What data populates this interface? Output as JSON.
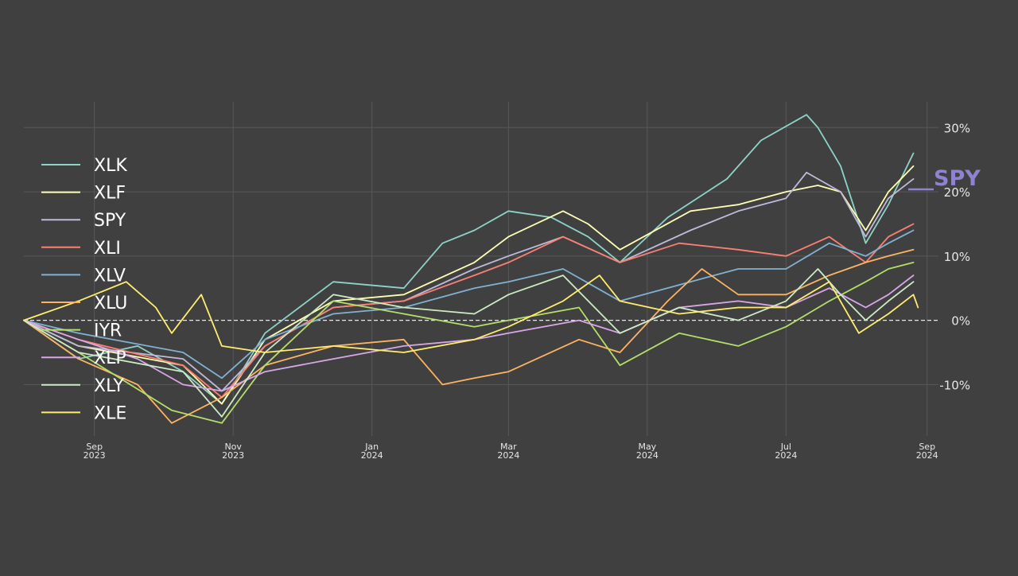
{
  "chart_data": {
    "type": "line",
    "title": "",
    "xlabel": "",
    "ylabel": "",
    "ylim": [
      -18,
      34
    ],
    "x_range": [
      "2023-08-01",
      "2024-09-06"
    ],
    "y_ticks": [
      {
        "value": 30,
        "label": "30%"
      },
      {
        "value": 20,
        "label": "20%"
      },
      {
        "value": 10,
        "label": "10%"
      },
      {
        "value": 0,
        "label": "0%"
      },
      {
        "value": -10,
        "label": "-10%"
      }
    ],
    "x_ticks": [
      {
        "date": "2023-09-01",
        "month": "Sep",
        "year": "2023"
      },
      {
        "date": "2023-11-01",
        "month": "Nov",
        "year": "2023"
      },
      {
        "date": "2024-01-01",
        "month": "Jan",
        "year": "2024"
      },
      {
        "date": "2024-03-01",
        "month": "Mar",
        "year": "2024"
      },
      {
        "date": "2024-05-01",
        "month": "May",
        "year": "2024"
      },
      {
        "date": "2024-07-01",
        "month": "Jul",
        "year": "2024"
      },
      {
        "date": "2024-09-01",
        "month": "Sep",
        "year": "2024"
      }
    ],
    "highlight": {
      "name": "SPY",
      "label": "SPY",
      "color": "#8d83cf"
    },
    "legend_position": "left",
    "grid": true,
    "zero_line": true,
    "series": [
      {
        "name": "XLK",
        "color": "#8dd3c7",
        "points": [
          [
            "2023-08-01",
            0
          ],
          [
            "2023-08-25",
            -6
          ],
          [
            "2023-09-20",
            -4
          ],
          [
            "2023-10-10",
            -8
          ],
          [
            "2023-10-27",
            -13
          ],
          [
            "2023-11-15",
            -2
          ],
          [
            "2023-12-15",
            6
          ],
          [
            "2024-01-15",
            5
          ],
          [
            "2024-02-01",
            12
          ],
          [
            "2024-02-15",
            14
          ],
          [
            "2024-03-01",
            17
          ],
          [
            "2024-03-20",
            16
          ],
          [
            "2024-04-05",
            13
          ],
          [
            "2024-04-19",
            9
          ],
          [
            "2024-05-10",
            16
          ],
          [
            "2024-06-05",
            22
          ],
          [
            "2024-06-20",
            28
          ],
          [
            "2024-07-10",
            32
          ],
          [
            "2024-07-15",
            30
          ],
          [
            "2024-07-25",
            24
          ],
          [
            "2024-08-05",
            12
          ],
          [
            "2024-08-15",
            18
          ],
          [
            "2024-08-26",
            26
          ]
        ]
      },
      {
        "name": "XLF",
        "color": "#ffffb3",
        "points": [
          [
            "2023-08-01",
            0
          ],
          [
            "2023-08-25",
            -4
          ],
          [
            "2023-10-10",
            -7
          ],
          [
            "2023-10-27",
            -13
          ],
          [
            "2023-11-15",
            -3
          ],
          [
            "2023-12-15",
            3
          ],
          [
            "2024-01-15",
            4
          ],
          [
            "2024-02-15",
            9
          ],
          [
            "2024-03-01",
            13
          ],
          [
            "2024-03-25",
            17
          ],
          [
            "2024-04-05",
            15
          ],
          [
            "2024-04-19",
            11
          ],
          [
            "2024-05-20",
            17
          ],
          [
            "2024-06-10",
            18
          ],
          [
            "2024-07-01",
            20
          ],
          [
            "2024-07-15",
            21
          ],
          [
            "2024-07-25",
            20
          ],
          [
            "2024-08-05",
            14
          ],
          [
            "2024-08-15",
            20
          ],
          [
            "2024-08-26",
            24
          ]
        ]
      },
      {
        "name": "SPY",
        "color": "#bebada",
        "points": [
          [
            "2023-08-01",
            0
          ],
          [
            "2023-08-25",
            -4
          ],
          [
            "2023-10-10",
            -6
          ],
          [
            "2023-10-27",
            -11
          ],
          [
            "2023-11-15",
            -4
          ],
          [
            "2023-12-15",
            2
          ],
          [
            "2024-01-15",
            3
          ],
          [
            "2024-02-15",
            8
          ],
          [
            "2024-03-01",
            10
          ],
          [
            "2024-03-25",
            13
          ],
          [
            "2024-04-19",
            9
          ],
          [
            "2024-05-20",
            14
          ],
          [
            "2024-06-10",
            17
          ],
          [
            "2024-07-01",
            19
          ],
          [
            "2024-07-10",
            23
          ],
          [
            "2024-07-25",
            20
          ],
          [
            "2024-08-05",
            13
          ],
          [
            "2024-08-15",
            19
          ],
          [
            "2024-08-26",
            22
          ]
        ]
      },
      {
        "name": "XLI",
        "color": "#fb8072",
        "points": [
          [
            "2023-08-01",
            0
          ],
          [
            "2023-08-25",
            -3
          ],
          [
            "2023-10-10",
            -7
          ],
          [
            "2023-10-27",
            -12
          ],
          [
            "2023-11-15",
            -4
          ],
          [
            "2023-12-15",
            2
          ],
          [
            "2024-01-15",
            3
          ],
          [
            "2024-02-15",
            7
          ],
          [
            "2024-03-01",
            9
          ],
          [
            "2024-03-25",
            13
          ],
          [
            "2024-04-19",
            9
          ],
          [
            "2024-05-15",
            12
          ],
          [
            "2024-06-10",
            11
          ],
          [
            "2024-07-01",
            10
          ],
          [
            "2024-07-20",
            13
          ],
          [
            "2024-08-05",
            9
          ],
          [
            "2024-08-15",
            13
          ],
          [
            "2024-08-26",
            15
          ]
        ]
      },
      {
        "name": "XLV",
        "color": "#80b1d3",
        "points": [
          [
            "2023-08-01",
            0
          ],
          [
            "2023-08-25",
            -2
          ],
          [
            "2023-10-10",
            -5
          ],
          [
            "2023-10-27",
            -9
          ],
          [
            "2023-11-15",
            -3
          ],
          [
            "2023-12-15",
            1
          ],
          [
            "2024-01-15",
            2
          ],
          [
            "2024-02-15",
            5
          ],
          [
            "2024-03-01",
            6
          ],
          [
            "2024-03-25",
            8
          ],
          [
            "2024-04-19",
            3
          ],
          [
            "2024-05-20",
            6
          ],
          [
            "2024-06-10",
            8
          ],
          [
            "2024-07-01",
            8
          ],
          [
            "2024-07-20",
            12
          ],
          [
            "2024-08-05",
            10
          ],
          [
            "2024-08-15",
            12
          ],
          [
            "2024-08-26",
            14
          ]
        ]
      },
      {
        "name": "XLU",
        "color": "#fdb462",
        "points": [
          [
            "2023-08-01",
            0
          ],
          [
            "2023-08-25",
            -6
          ],
          [
            "2023-09-20",
            -10
          ],
          [
            "2023-10-05",
            -16
          ],
          [
            "2023-10-27",
            -12
          ],
          [
            "2023-11-15",
            -7
          ],
          [
            "2023-12-15",
            -4
          ],
          [
            "2024-01-15",
            -3
          ],
          [
            "2024-02-01",
            -10
          ],
          [
            "2024-02-15",
            -9
          ],
          [
            "2024-03-01",
            -8
          ],
          [
            "2024-04-01",
            -3
          ],
          [
            "2024-04-19",
            -5
          ],
          [
            "2024-05-10",
            3
          ],
          [
            "2024-05-25",
            8
          ],
          [
            "2024-06-10",
            4
          ],
          [
            "2024-07-01",
            4
          ],
          [
            "2024-07-20",
            7
          ],
          [
            "2024-08-05",
            9
          ],
          [
            "2024-08-15",
            10
          ],
          [
            "2024-08-26",
            11
          ]
        ]
      },
      {
        "name": "IYR",
        "color": "#b3de69",
        "points": [
          [
            "2023-08-01",
            0
          ],
          [
            "2023-08-25",
            -5
          ],
          [
            "2023-10-05",
            -14
          ],
          [
            "2023-10-27",
            -16
          ],
          [
            "2023-11-15",
            -7
          ],
          [
            "2023-12-15",
            3
          ],
          [
            "2024-01-15",
            1
          ],
          [
            "2024-02-15",
            -1
          ],
          [
            "2024-03-01",
            0
          ],
          [
            "2024-04-01",
            2
          ],
          [
            "2024-04-19",
            -7
          ],
          [
            "2024-05-15",
            -2
          ],
          [
            "2024-06-10",
            -4
          ],
          [
            "2024-07-01",
            -1
          ],
          [
            "2024-07-20",
            3
          ],
          [
            "2024-08-05",
            6
          ],
          [
            "2024-08-15",
            8
          ],
          [
            "2024-08-26",
            9
          ]
        ]
      },
      {
        "name": "XLP",
        "color": "#d9a6e8",
        "points": [
          [
            "2023-08-01",
            0
          ],
          [
            "2023-08-25",
            -3
          ],
          [
            "2023-09-20",
            -6
          ],
          [
            "2023-10-10",
            -10
          ],
          [
            "2023-10-27",
            -11
          ],
          [
            "2023-11-15",
            -8
          ],
          [
            "2023-12-15",
            -6
          ],
          [
            "2024-01-15",
            -4
          ],
          [
            "2024-02-15",
            -3
          ],
          [
            "2024-03-01",
            -2
          ],
          [
            "2024-04-01",
            0
          ],
          [
            "2024-04-19",
            -2
          ],
          [
            "2024-05-15",
            2
          ],
          [
            "2024-06-10",
            3
          ],
          [
            "2024-07-01",
            2
          ],
          [
            "2024-07-20",
            5
          ],
          [
            "2024-08-05",
            2
          ],
          [
            "2024-08-15",
            4
          ],
          [
            "2024-08-26",
            7
          ]
        ]
      },
      {
        "name": "XLY",
        "color": "#ccebc5",
        "points": [
          [
            "2023-08-01",
            0
          ],
          [
            "2023-08-25",
            -5
          ],
          [
            "2023-10-10",
            -8
          ],
          [
            "2023-10-27",
            -15
          ],
          [
            "2023-11-15",
            -5
          ],
          [
            "2023-12-15",
            4
          ],
          [
            "2024-01-15",
            2
          ],
          [
            "2024-02-15",
            1
          ],
          [
            "2024-03-01",
            4
          ],
          [
            "2024-03-25",
            7
          ],
          [
            "2024-04-19",
            -2
          ],
          [
            "2024-05-15",
            2
          ],
          [
            "2024-06-10",
            0
          ],
          [
            "2024-07-01",
            3
          ],
          [
            "2024-07-15",
            8
          ],
          [
            "2024-07-25",
            4
          ],
          [
            "2024-08-05",
            0
          ],
          [
            "2024-08-15",
            3
          ],
          [
            "2024-08-26",
            6
          ]
        ]
      },
      {
        "name": "XLE",
        "color": "#ffed6f",
        "points": [
          [
            "2023-08-01",
            0
          ],
          [
            "2023-08-25",
            3
          ],
          [
            "2023-09-15",
            6
          ],
          [
            "2023-09-28",
            2
          ],
          [
            "2023-10-05",
            -2
          ],
          [
            "2023-10-18",
            4
          ],
          [
            "2023-10-27",
            -4
          ],
          [
            "2023-11-15",
            -5
          ],
          [
            "2023-12-15",
            -4
          ],
          [
            "2024-01-15",
            -5
          ],
          [
            "2024-02-15",
            -3
          ],
          [
            "2024-03-01",
            -1
          ],
          [
            "2024-03-25",
            3
          ],
          [
            "2024-04-10",
            7
          ],
          [
            "2024-04-19",
            3
          ],
          [
            "2024-05-15",
            1
          ],
          [
            "2024-06-10",
            2
          ],
          [
            "2024-07-01",
            2
          ],
          [
            "2024-07-20",
            6
          ],
          [
            "2024-08-02",
            -2
          ],
          [
            "2024-08-15",
            1
          ],
          [
            "2024-08-26",
            4
          ],
          [
            "2024-08-28",
            2
          ]
        ]
      }
    ]
  }
}
